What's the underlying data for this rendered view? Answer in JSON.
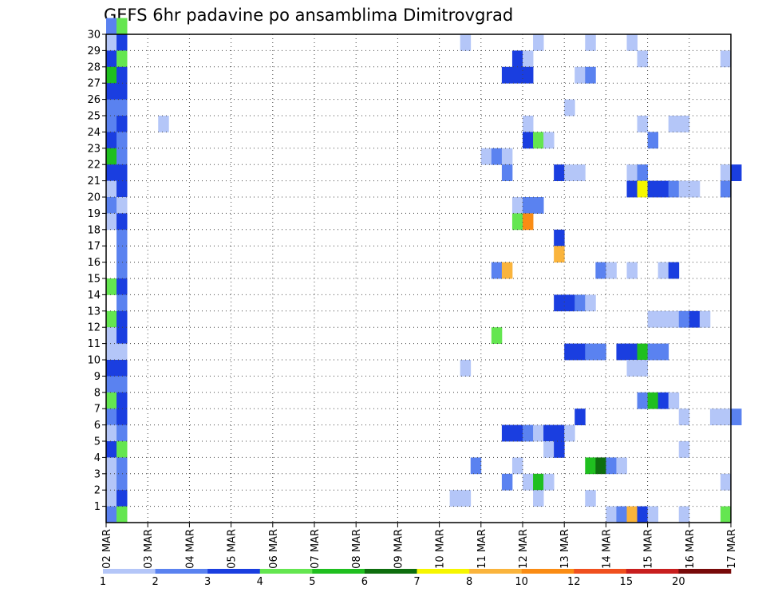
{
  "chart_data": {
    "type": "heatmap",
    "title": "GEFS 6hr padavine po ansamblima Dimitrovgrad",
    "xlabel": "",
    "ylabel": "",
    "x_ticks": [
      "02 MAR",
      "03 MAR",
      "04 MAR",
      "05 MAR",
      "06 MAR",
      "07 MAR",
      "08 MAR",
      "09 MAR",
      "10 MAR",
      "11 MAR",
      "12 MAR",
      "13 MAR",
      "14 MAR",
      "15 MAR",
      "16 MAR",
      "17 MAR"
    ],
    "x_range": [
      "02 MAR 00Z",
      "17 MAR 00Z"
    ],
    "y_ticks": [
      1,
      2,
      3,
      4,
      5,
      6,
      7,
      8,
      9,
      10,
      11,
      12,
      13,
      14,
      15,
      16,
      17,
      18,
      19,
      20,
      21,
      22,
      23,
      24,
      25,
      26,
      27,
      28,
      29,
      30
    ],
    "y_range": [
      0,
      30
    ],
    "grid": true,
    "legend": {
      "placement": "bottom",
      "labels": [
        "1",
        "2",
        "3",
        "4",
        "5",
        "6",
        "7",
        "8",
        "10",
        "12",
        "15",
        "20"
      ],
      "colors": [
        "#b4c6f8",
        "#5a82f0",
        "#1a3ee0",
        "#64e650",
        "#1fbf1f",
        "#0e6e0e",
        "#f6f600",
        "#fab43c",
        "#fa8c14",
        "#f0501e",
        "#c81e1e",
        "#780a0a"
      ]
    },
    "levels": [
      1,
      2,
      3,
      4,
      5,
      6,
      7,
      8,
      10,
      12,
      15,
      20
    ],
    "cells": [
      [
        0,
        30,
        2
      ],
      [
        1,
        30,
        4
      ],
      [
        0,
        29,
        1
      ],
      [
        1,
        29,
        3
      ],
      [
        0,
        28,
        3
      ],
      [
        1,
        28,
        4
      ],
      [
        0,
        27,
        5
      ],
      [
        1,
        27,
        3
      ],
      [
        0,
        26,
        3
      ],
      [
        1,
        26,
        3
      ],
      [
        0,
        25,
        2
      ],
      [
        1,
        25,
        2
      ],
      [
        0,
        24,
        2
      ],
      [
        1,
        24,
        3
      ],
      [
        0,
        23,
        3
      ],
      [
        1,
        23,
        2
      ],
      [
        0,
        22,
        5
      ],
      [
        1,
        22,
        2
      ],
      [
        0,
        21,
        3
      ],
      [
        1,
        21,
        3
      ],
      [
        0,
        20,
        1
      ],
      [
        1,
        20,
        3
      ],
      [
        0,
        19,
        2
      ],
      [
        1,
        19,
        1
      ],
      [
        0,
        18,
        1
      ],
      [
        1,
        18,
        3
      ],
      [
        1,
        17,
        2
      ],
      [
        1,
        16,
        2
      ],
      [
        1,
        15,
        2
      ],
      [
        0,
        14,
        4
      ],
      [
        1,
        14,
        3
      ],
      [
        1,
        13,
        2
      ],
      [
        0,
        12,
        4
      ],
      [
        1,
        12,
        3
      ],
      [
        0,
        11,
        1
      ],
      [
        1,
        11,
        3
      ],
      [
        0,
        10,
        1
      ],
      [
        1,
        10,
        1
      ],
      [
        0,
        9,
        3
      ],
      [
        1,
        9,
        3
      ],
      [
        0,
        8,
        2
      ],
      [
        1,
        8,
        2
      ],
      [
        0,
        7,
        4
      ],
      [
        1,
        7,
        3
      ],
      [
        0,
        6,
        2
      ],
      [
        1,
        6,
        3
      ],
      [
        0,
        5,
        1
      ],
      [
        1,
        5,
        2
      ],
      [
        0,
        4,
        3
      ],
      [
        1,
        4,
        4
      ],
      [
        0,
        3,
        1
      ],
      [
        1,
        3,
        2
      ],
      [
        0,
        2,
        1
      ],
      [
        1,
        2,
        2
      ],
      [
        0,
        1,
        1
      ],
      [
        1,
        1,
        3
      ],
      [
        0,
        0,
        2
      ],
      [
        1,
        0,
        4
      ],
      [
        5,
        24,
        1
      ],
      [
        34,
        29,
        1
      ],
      [
        41,
        29,
        1
      ],
      [
        46,
        29,
        1
      ],
      [
        50,
        29,
        1
      ],
      [
        39,
        28,
        3
      ],
      [
        40,
        28,
        1
      ],
      [
        51,
        28,
        1
      ],
      [
        59,
        28,
        1
      ],
      [
        38,
        27,
        3
      ],
      [
        39,
        27,
        3
      ],
      [
        40,
        27,
        3
      ],
      [
        45,
        27,
        1
      ],
      [
        46,
        27,
        2
      ],
      [
        44,
        25,
        1
      ],
      [
        40,
        24,
        1
      ],
      [
        51,
        24,
        1
      ],
      [
        54,
        24,
        1
      ],
      [
        55,
        24,
        1
      ],
      [
        40,
        23,
        3
      ],
      [
        41,
        23,
        4
      ],
      [
        42,
        23,
        1
      ],
      [
        52,
        23,
        2
      ],
      [
        36,
        22,
        1
      ],
      [
        37,
        22,
        2
      ],
      [
        38,
        22,
        1
      ],
      [
        38,
        21,
        2
      ],
      [
        43,
        21,
        3
      ],
      [
        44,
        21,
        1
      ],
      [
        45,
        21,
        1
      ],
      [
        50,
        21,
        1
      ],
      [
        51,
        21,
        2
      ],
      [
        59,
        21,
        1
      ],
      [
        60,
        21,
        3
      ],
      [
        50,
        20,
        3
      ],
      [
        51,
        20,
        7
      ],
      [
        52,
        20,
        3
      ],
      [
        53,
        20,
        3
      ],
      [
        54,
        20,
        2
      ],
      [
        55,
        20,
        1
      ],
      [
        56,
        20,
        1
      ],
      [
        59,
        20,
        2
      ],
      [
        39,
        19,
        1
      ],
      [
        40,
        19,
        2
      ],
      [
        41,
        19,
        2
      ],
      [
        39,
        18,
        4
      ],
      [
        40,
        18,
        9
      ],
      [
        43,
        17,
        3
      ],
      [
        43,
        16,
        8
      ],
      [
        37,
        15,
        2
      ],
      [
        38,
        15,
        8
      ],
      [
        47,
        15,
        2
      ],
      [
        48,
        15,
        1
      ],
      [
        50,
        15,
        1
      ],
      [
        53,
        15,
        1
      ],
      [
        54,
        15,
        3
      ],
      [
        43,
        13,
        3
      ],
      [
        44,
        13,
        3
      ],
      [
        45,
        13,
        2
      ],
      [
        46,
        13,
        1
      ],
      [
        52,
        12,
        1
      ],
      [
        53,
        12,
        1
      ],
      [
        54,
        12,
        1
      ],
      [
        55,
        12,
        2
      ],
      [
        56,
        12,
        3
      ],
      [
        57,
        12,
        1
      ],
      [
        37,
        11,
        4
      ],
      [
        44,
        10,
        3
      ],
      [
        45,
        10,
        3
      ],
      [
        46,
        10,
        2
      ],
      [
        47,
        10,
        2
      ],
      [
        49,
        10,
        3
      ],
      [
        50,
        10,
        3
      ],
      [
        51,
        10,
        5
      ],
      [
        52,
        10,
        2
      ],
      [
        53,
        10,
        2
      ],
      [
        34,
        9,
        1
      ],
      [
        50,
        9,
        1
      ],
      [
        51,
        9,
        1
      ],
      [
        51,
        7,
        2
      ],
      [
        52,
        7,
        5
      ],
      [
        53,
        7,
        3
      ],
      [
        54,
        7,
        1
      ],
      [
        45,
        6,
        3
      ],
      [
        55,
        6,
        1
      ],
      [
        58,
        6,
        1
      ],
      [
        59,
        6,
        1
      ],
      [
        60,
        6,
        2
      ],
      [
        38,
        5,
        3
      ],
      [
        39,
        5,
        3
      ],
      [
        40,
        5,
        2
      ],
      [
        41,
        5,
        1
      ],
      [
        42,
        5,
        3
      ],
      [
        43,
        5,
        3
      ],
      [
        44,
        5,
        1
      ],
      [
        42,
        4,
        1
      ],
      [
        43,
        4,
        3
      ],
      [
        55,
        4,
        1
      ],
      [
        35,
        3,
        2
      ],
      [
        39,
        3,
        1
      ],
      [
        46,
        3,
        5
      ],
      [
        47,
        3,
        6
      ],
      [
        48,
        3,
        2
      ],
      [
        49,
        3,
        1
      ],
      [
        38,
        2,
        2
      ],
      [
        40,
        2,
        1
      ],
      [
        41,
        2,
        5
      ],
      [
        42,
        2,
        1
      ],
      [
        59,
        2,
        1
      ],
      [
        33,
        1,
        1
      ],
      [
        34,
        1,
        1
      ],
      [
        41,
        1,
        1
      ],
      [
        46,
        1,
        1
      ],
      [
        48,
        0,
        1
      ],
      [
        49,
        0,
        2
      ],
      [
        50,
        0,
        8
      ],
      [
        51,
        0,
        3
      ],
      [
        52,
        0,
        1
      ],
      [
        55,
        0,
        1
      ],
      [
        59,
        0,
        4
      ]
    ]
  }
}
